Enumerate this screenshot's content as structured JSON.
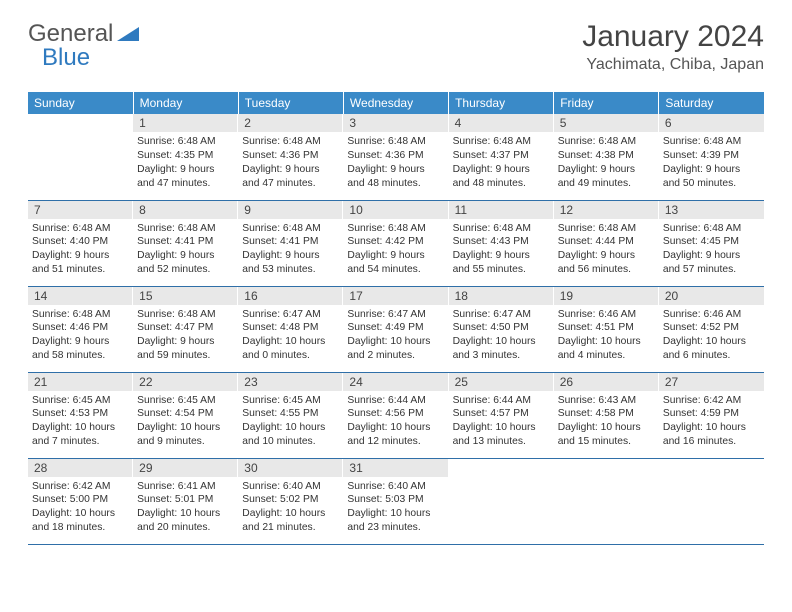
{
  "logo": {
    "text1": "General",
    "text2": "Blue"
  },
  "title": "January 2024",
  "location": "Yachimata, Chiba, Japan",
  "colors": {
    "header_bg": "#3a8ac8",
    "header_text": "#ffffff",
    "daynum_bg": "#e8e8e8",
    "border": "#2f6fa8",
    "logo_blue": "#2f7abf"
  },
  "weekdays": [
    "Sunday",
    "Monday",
    "Tuesday",
    "Wednesday",
    "Thursday",
    "Friday",
    "Saturday"
  ],
  "weeks": [
    [
      null,
      {
        "n": "1",
        "sr": "6:48 AM",
        "ss": "4:35 PM",
        "dl": "9 hours and 47 minutes."
      },
      {
        "n": "2",
        "sr": "6:48 AM",
        "ss": "4:36 PM",
        "dl": "9 hours and 47 minutes."
      },
      {
        "n": "3",
        "sr": "6:48 AM",
        "ss": "4:36 PM",
        "dl": "9 hours and 48 minutes."
      },
      {
        "n": "4",
        "sr": "6:48 AM",
        "ss": "4:37 PM",
        "dl": "9 hours and 48 minutes."
      },
      {
        "n": "5",
        "sr": "6:48 AM",
        "ss": "4:38 PM",
        "dl": "9 hours and 49 minutes."
      },
      {
        "n": "6",
        "sr": "6:48 AM",
        "ss": "4:39 PM",
        "dl": "9 hours and 50 minutes."
      }
    ],
    [
      {
        "n": "7",
        "sr": "6:48 AM",
        "ss": "4:40 PM",
        "dl": "9 hours and 51 minutes."
      },
      {
        "n": "8",
        "sr": "6:48 AM",
        "ss": "4:41 PM",
        "dl": "9 hours and 52 minutes."
      },
      {
        "n": "9",
        "sr": "6:48 AM",
        "ss": "4:41 PM",
        "dl": "9 hours and 53 minutes."
      },
      {
        "n": "10",
        "sr": "6:48 AM",
        "ss": "4:42 PM",
        "dl": "9 hours and 54 minutes."
      },
      {
        "n": "11",
        "sr": "6:48 AM",
        "ss": "4:43 PM",
        "dl": "9 hours and 55 minutes."
      },
      {
        "n": "12",
        "sr": "6:48 AM",
        "ss": "4:44 PM",
        "dl": "9 hours and 56 minutes."
      },
      {
        "n": "13",
        "sr": "6:48 AM",
        "ss": "4:45 PM",
        "dl": "9 hours and 57 minutes."
      }
    ],
    [
      {
        "n": "14",
        "sr": "6:48 AM",
        "ss": "4:46 PM",
        "dl": "9 hours and 58 minutes."
      },
      {
        "n": "15",
        "sr": "6:48 AM",
        "ss": "4:47 PM",
        "dl": "9 hours and 59 minutes."
      },
      {
        "n": "16",
        "sr": "6:47 AM",
        "ss": "4:48 PM",
        "dl": "10 hours and 0 minutes."
      },
      {
        "n": "17",
        "sr": "6:47 AM",
        "ss": "4:49 PM",
        "dl": "10 hours and 2 minutes."
      },
      {
        "n": "18",
        "sr": "6:47 AM",
        "ss": "4:50 PM",
        "dl": "10 hours and 3 minutes."
      },
      {
        "n": "19",
        "sr": "6:46 AM",
        "ss": "4:51 PM",
        "dl": "10 hours and 4 minutes."
      },
      {
        "n": "20",
        "sr": "6:46 AM",
        "ss": "4:52 PM",
        "dl": "10 hours and 6 minutes."
      }
    ],
    [
      {
        "n": "21",
        "sr": "6:45 AM",
        "ss": "4:53 PM",
        "dl": "10 hours and 7 minutes."
      },
      {
        "n": "22",
        "sr": "6:45 AM",
        "ss": "4:54 PM",
        "dl": "10 hours and 9 minutes."
      },
      {
        "n": "23",
        "sr": "6:45 AM",
        "ss": "4:55 PM",
        "dl": "10 hours and 10 minutes."
      },
      {
        "n": "24",
        "sr": "6:44 AM",
        "ss": "4:56 PM",
        "dl": "10 hours and 12 minutes."
      },
      {
        "n": "25",
        "sr": "6:44 AM",
        "ss": "4:57 PM",
        "dl": "10 hours and 13 minutes."
      },
      {
        "n": "26",
        "sr": "6:43 AM",
        "ss": "4:58 PM",
        "dl": "10 hours and 15 minutes."
      },
      {
        "n": "27",
        "sr": "6:42 AM",
        "ss": "4:59 PM",
        "dl": "10 hours and 16 minutes."
      }
    ],
    [
      {
        "n": "28",
        "sr": "6:42 AM",
        "ss": "5:00 PM",
        "dl": "10 hours and 18 minutes."
      },
      {
        "n": "29",
        "sr": "6:41 AM",
        "ss": "5:01 PM",
        "dl": "10 hours and 20 minutes."
      },
      {
        "n": "30",
        "sr": "6:40 AM",
        "ss": "5:02 PM",
        "dl": "10 hours and 21 minutes."
      },
      {
        "n": "31",
        "sr": "6:40 AM",
        "ss": "5:03 PM",
        "dl": "10 hours and 23 minutes."
      },
      null,
      null,
      null
    ]
  ]
}
